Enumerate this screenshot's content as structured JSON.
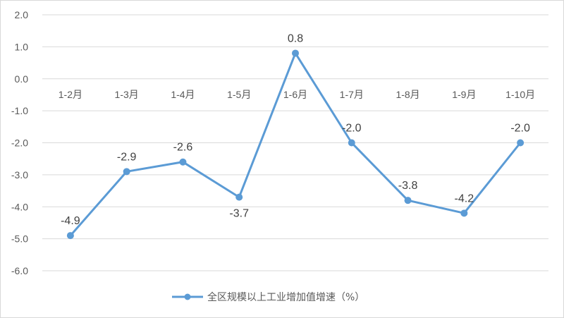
{
  "chart_data": {
    "type": "line",
    "categories": [
      "1-2月",
      "1-3月",
      "1-4月",
      "1-5月",
      "1-6月",
      "1-7月",
      "1-8月",
      "1-9月",
      "1-10月"
    ],
    "series": [
      {
        "name": "全区规模以上工业增加值增速（%）",
        "values": [
          -4.9,
          -2.9,
          -2.6,
          -3.7,
          0.8,
          -2.0,
          -3.8,
          -4.2,
          -2.0
        ],
        "color": "#5b9bd5"
      }
    ],
    "data_labels": [
      "-4.9",
      "-2.9",
      "-2.6",
      "-3.7",
      "0.8",
      "-2.0",
      "-3.8",
      "-4.2",
      "-2.0"
    ],
    "y_ticks": [
      "2.0",
      "1.0",
      "0.0",
      "-1.0",
      "-2.0",
      "-3.0",
      "-4.0",
      "-5.0",
      "-6.0"
    ],
    "ylim": [
      -6,
      2
    ],
    "grid": true,
    "legend": "bottom-center"
  }
}
